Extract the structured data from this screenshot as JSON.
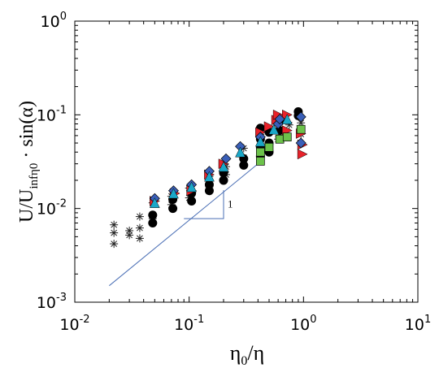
{
  "chart_data": {
    "type": "scatter",
    "title": "",
    "x_scale": "log",
    "y_scale": "log",
    "xlim": [
      0.01,
      10
    ],
    "ylim": [
      0.001,
      1
    ],
    "grid": false,
    "legend": "none",
    "x_ticks": [
      {
        "value": 0.01,
        "base": "10",
        "exp": "-2"
      },
      {
        "value": 0.1,
        "base": "10",
        "exp": "-1"
      },
      {
        "value": 1,
        "base": "10",
        "exp": "0"
      },
      {
        "value": 10,
        "base": "10",
        "exp": "1"
      }
    ],
    "y_ticks": [
      {
        "value": 0.001,
        "base": "10",
        "exp": "-3"
      },
      {
        "value": 0.01,
        "base": "10",
        "exp": "-2"
      },
      {
        "value": 0.1,
        "base": "10",
        "exp": "-1"
      },
      {
        "value": 1,
        "base": "10",
        "exp": "0"
      }
    ],
    "xlabel": {
      "eta": "η",
      "sub": "0",
      "rest": "/η"
    },
    "ylabel": {
      "main": "U/U",
      "sub": "infη0",
      "tail": " · sin(α)"
    },
    "slope_line": {
      "x": [
        0.02,
        0.4
      ],
      "y": [
        0.0015,
        0.03
      ],
      "color": "#4a6fb5"
    },
    "slope_triangle": {
      "x1": 0.09,
      "x2": 0.2,
      "y1": 0.0078,
      "y2": 0.0157,
      "label": "1"
    },
    "series": [
      {
        "marker": "star",
        "color": "#222222",
        "points": [
          [
            0.022,
            0.0042
          ],
          [
            0.022,
            0.0055
          ],
          [
            0.022,
            0.0067
          ],
          [
            0.03,
            0.0052
          ],
          [
            0.03,
            0.0058
          ],
          [
            0.037,
            0.0048
          ],
          [
            0.037,
            0.0062
          ],
          [
            0.037,
            0.0082
          ],
          [
            0.048,
            0.0078
          ],
          [
            0.048,
            0.0115
          ],
          [
            0.07,
            0.011
          ],
          [
            0.07,
            0.0135
          ],
          [
            0.1,
            0.013
          ],
          [
            0.1,
            0.0165
          ],
          [
            0.15,
            0.017
          ],
          [
            0.15,
            0.022
          ],
          [
            0.21,
            0.023
          ],
          [
            0.21,
            0.028
          ],
          [
            0.3,
            0.035
          ],
          [
            0.3,
            0.044
          ],
          [
            0.42,
            0.046
          ],
          [
            0.42,
            0.062
          ],
          [
            0.6,
            0.055
          ],
          [
            0.6,
            0.072
          ],
          [
            0.75,
            0.078
          ],
          [
            0.95,
            0.062
          ],
          [
            0.95,
            0.082
          ]
        ]
      },
      {
        "marker": "circle",
        "color": "#000000",
        "points": [
          [
            0.048,
            0.007
          ],
          [
            0.048,
            0.0085
          ],
          [
            0.072,
            0.01
          ],
          [
            0.072,
            0.0125
          ],
          [
            0.105,
            0.012
          ],
          [
            0.105,
            0.0145
          ],
          [
            0.15,
            0.0155
          ],
          [
            0.15,
            0.018
          ],
          [
            0.2,
            0.02
          ],
          [
            0.2,
            0.024
          ],
          [
            0.3,
            0.029
          ],
          [
            0.3,
            0.034
          ],
          [
            0.42,
            0.036
          ],
          [
            0.42,
            0.045
          ],
          [
            0.42,
            0.055
          ],
          [
            0.42,
            0.072
          ],
          [
            0.5,
            0.04
          ],
          [
            0.5,
            0.05
          ],
          [
            0.5,
            0.065
          ],
          [
            0.62,
            0.068
          ],
          [
            0.62,
            0.085
          ],
          [
            0.9,
            0.098
          ],
          [
            0.9,
            0.108
          ]
        ]
      },
      {
        "marker": "triangle-right",
        "color": "#e8222a",
        "points": [
          [
            0.05,
            0.012
          ],
          [
            0.075,
            0.0145
          ],
          [
            0.105,
            0.0155
          ],
          [
            0.15,
            0.023
          ],
          [
            0.2,
            0.03
          ],
          [
            0.42,
            0.065
          ],
          [
            0.5,
            0.075
          ],
          [
            0.58,
            0.088
          ],
          [
            0.6,
            0.1
          ],
          [
            0.72,
            0.1
          ],
          [
            0.72,
            0.068
          ],
          [
            0.95,
            0.063
          ],
          [
            0.98,
            0.048
          ],
          [
            0.98,
            0.038
          ]
        ]
      },
      {
        "marker": "diamond",
        "color": "#3a5fb8",
        "points": [
          [
            0.05,
            0.0128
          ],
          [
            0.073,
            0.0155
          ],
          [
            0.105,
            0.018
          ],
          [
            0.15,
            0.025
          ],
          [
            0.21,
            0.034
          ],
          [
            0.28,
            0.046
          ],
          [
            0.42,
            0.058
          ],
          [
            0.6,
            0.08
          ],
          [
            0.62,
            0.09
          ],
          [
            0.95,
            0.095
          ],
          [
            0.95,
            0.05
          ]
        ]
      },
      {
        "marker": "triangle-up",
        "color": "#1aa7c8",
        "points": [
          [
            0.05,
            0.0115
          ],
          [
            0.073,
            0.0145
          ],
          [
            0.105,
            0.017
          ],
          [
            0.15,
            0.022
          ],
          [
            0.2,
            0.028
          ],
          [
            0.28,
            0.04
          ],
          [
            0.42,
            0.052
          ],
          [
            0.55,
            0.07
          ],
          [
            0.72,
            0.09
          ]
        ]
      },
      {
        "marker": "square",
        "color": "#6cc24a",
        "points": [
          [
            0.42,
            0.032
          ],
          [
            0.42,
            0.04
          ],
          [
            0.5,
            0.045
          ],
          [
            0.62,
            0.055
          ],
          [
            0.72,
            0.058
          ],
          [
            0.95,
            0.07
          ]
        ]
      }
    ]
  }
}
